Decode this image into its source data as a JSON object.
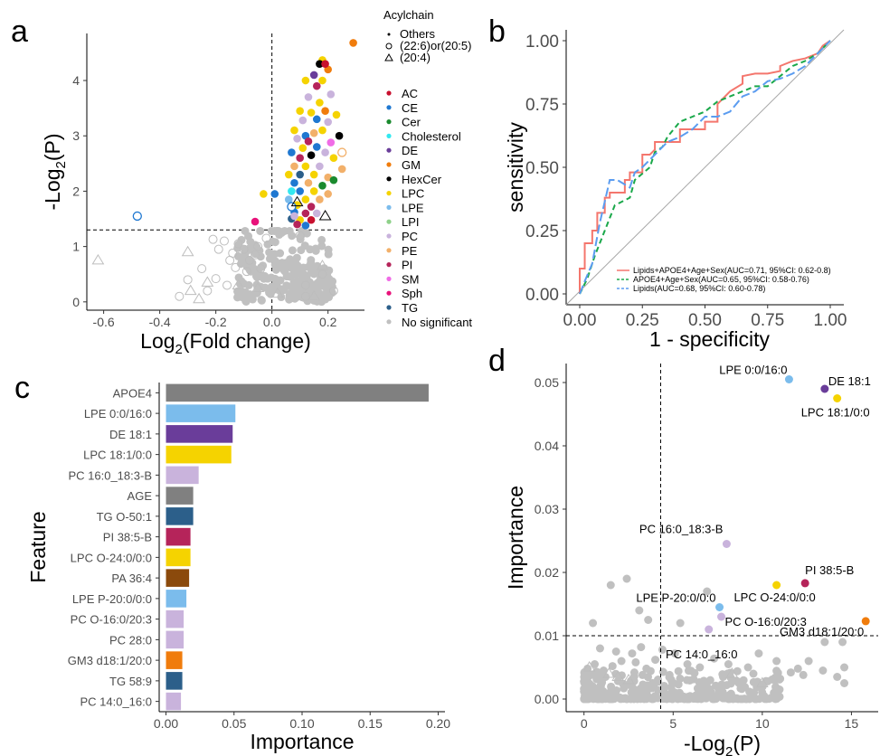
{
  "panel_letters": [
    "a",
    "b",
    "c",
    "d"
  ],
  "colors": {
    "AC": "#c8102e",
    "CE": "#1f78d1",
    "Cer": "#1a8a2e",
    "Cholesterol": "#33e8f0",
    "DE": "#6a3d9a",
    "GM": "#f07c0c",
    "HexCer": "#000000",
    "LPC": "#f5d300",
    "LPE": "#7bbcec",
    "LPI": "#8fd18a",
    "PC": "#c9b3dc",
    "PE": "#f2b06a",
    "PI": "#b5245a",
    "SM": "#f06ce6",
    "Sph": "#e8127a",
    "TG": "#2c5f8a",
    "No significant": "#c0c0c0",
    "gray_bar": "#808080",
    "PA": "#8b4a0c"
  },
  "chart_data": [
    {
      "panel": "a",
      "type": "scatter",
      "xlabel_main": "Log",
      "xlabel_sub": "2",
      "xlabel_rest": "(Fold change)",
      "ylabel_pre": "-Log",
      "ylabel_sub": "2",
      "ylabel_rest": "(P)",
      "xlim": [
        -0.66,
        0.33
      ],
      "ylim": [
        -0.15,
        4.85
      ],
      "xticks": [
        "-0.6",
        "-0.4",
        "-0.2",
        "0.0",
        "0.2"
      ],
      "yticks": [
        "0",
        "1",
        "2",
        "3",
        "4"
      ],
      "hline": 1.3,
      "vline": 0.0,
      "legend_shape_title": "Acylchain",
      "legend_shapes": [
        "Others",
        "(22:6)or(20:5)",
        "(20:4)"
      ],
      "legend_classes": [
        "AC",
        "CE",
        "Cer",
        "Cholesterol",
        "DE",
        "GM",
        "HexCer",
        "LPC",
        "LPE",
        "LPI",
        "PC",
        "PE",
        "PI",
        "SM",
        "Sph",
        "TG",
        "No significant"
      ],
      "points_significant": [
        [
          0.29,
          4.68,
          "GM"
        ],
        [
          0.18,
          4.37,
          "LPC"
        ],
        [
          0.2,
          4.2,
          "GM"
        ],
        [
          0.17,
          4.3,
          "HexCer"
        ],
        [
          0.19,
          4.3,
          "AC"
        ],
        [
          0.15,
          4.1,
          "DE"
        ],
        [
          0.12,
          4.0,
          "LPC"
        ],
        [
          0.18,
          4.0,
          "LPC"
        ],
        [
          0.16,
          3.9,
          "PI"
        ],
        [
          0.21,
          3.75,
          "PC"
        ],
        [
          0.13,
          3.7,
          "PC"
        ],
        [
          0.17,
          3.6,
          "LPC"
        ],
        [
          0.1,
          3.45,
          "LPC"
        ],
        [
          0.14,
          3.42,
          "LPC"
        ],
        [
          0.19,
          3.45,
          "GM"
        ],
        [
          0.23,
          3.38,
          "LPC"
        ],
        [
          0.11,
          3.28,
          "PC"
        ],
        [
          0.16,
          3.3,
          "CE"
        ],
        [
          0.2,
          3.25,
          "PC"
        ],
        [
          0.08,
          3.1,
          "LPC"
        ],
        [
          0.12,
          3.0,
          "CE"
        ],
        [
          0.15,
          3.05,
          "PE"
        ],
        [
          0.18,
          3.1,
          "LPC"
        ],
        [
          0.24,
          3.0,
          "HexCer"
        ],
        [
          0.09,
          2.95,
          "PC"
        ],
        [
          0.13,
          2.9,
          "PI"
        ],
        [
          0.21,
          2.88,
          "SM"
        ],
        [
          0.11,
          2.78,
          "LPC"
        ],
        [
          0.16,
          2.8,
          "CE"
        ],
        [
          0.07,
          2.7,
          "CE"
        ],
        [
          0.19,
          2.7,
          "PC"
        ],
        [
          0.1,
          2.6,
          "PI"
        ],
        [
          0.14,
          2.65,
          "HexCer"
        ],
        [
          0.22,
          2.6,
          "LPC"
        ],
        [
          0.08,
          2.45,
          "PE"
        ],
        [
          0.12,
          2.45,
          "LPC"
        ],
        [
          0.17,
          2.45,
          "PC"
        ],
        [
          0.25,
          2.4,
          "PE"
        ],
        [
          0.06,
          2.3,
          "LPC"
        ],
        [
          0.1,
          2.3,
          "TG"
        ],
        [
          0.15,
          2.3,
          "LPC"
        ],
        [
          0.2,
          2.25,
          "PE"
        ],
        [
          0.08,
          2.15,
          "CE"
        ],
        [
          0.13,
          2.15,
          "PE"
        ],
        [
          0.18,
          2.1,
          "Cer"
        ],
        [
          0.22,
          2.2,
          "Cer"
        ],
        [
          -0.03,
          1.95,
          "LPC"
        ],
        [
          0.01,
          1.95,
          "CE"
        ],
        [
          0.07,
          2.0,
          "Cholesterol"
        ],
        [
          0.1,
          2.0,
          "CE"
        ],
        [
          0.15,
          2.0,
          "LPC"
        ],
        [
          0.2,
          1.95,
          "PE"
        ],
        [
          0.06,
          1.85,
          "LPE"
        ],
        [
          0.12,
          1.85,
          "LPC"
        ],
        [
          0.17,
          1.85,
          "PE"
        ],
        [
          0.09,
          1.75,
          "LPC"
        ],
        [
          0.14,
          1.72,
          "PI"
        ],
        [
          0.08,
          1.62,
          "CE"
        ],
        [
          0.12,
          1.6,
          "PI"
        ],
        [
          0.16,
          1.6,
          "PC"
        ],
        [
          0.07,
          1.5,
          "TG"
        ],
        [
          0.1,
          1.48,
          "LPC"
        ],
        [
          0.14,
          1.48,
          "AC"
        ],
        [
          0.09,
          1.4,
          "PI"
        ],
        [
          0.12,
          1.38,
          "CE"
        ],
        [
          -0.06,
          1.45,
          "Sph"
        ],
        [
          0.08,
          1.55,
          "PC"
        ]
      ],
      "points_open_sig": [
        [
          -0.48,
          1.55,
          "CE"
        ],
        [
          0.25,
          2.7,
          "PE"
        ],
        [
          0.07,
          1.72,
          "CE"
        ]
      ],
      "points_triangle_sig": [
        [
          0.09,
          1.8,
          "LPC"
        ],
        [
          0.19,
          1.55,
          "PE"
        ]
      ],
      "points_gray_open": [
        [
          -0.21,
          1.13
        ],
        [
          -0.19,
          0.95
        ],
        [
          -0.17,
          1.1
        ],
        [
          -0.14,
          0.88
        ],
        [
          -0.12,
          1.05
        ],
        [
          -0.1,
          0.95
        ],
        [
          -0.08,
          0.75
        ],
        [
          -0.06,
          0.85
        ],
        [
          -0.05,
          1.0
        ],
        [
          -0.15,
          0.75
        ],
        [
          -0.25,
          0.6
        ],
        [
          -0.3,
          0.4
        ],
        [
          -0.13,
          0.62
        ],
        [
          -0.09,
          0.55
        ],
        [
          -0.2,
          0.42
        ],
        [
          -0.04,
          0.6
        ],
        [
          0.12,
          0.3
        ],
        [
          0.18,
          0.5
        ],
        [
          0.12,
          0.1
        ],
        [
          -0.33,
          0.1
        ],
        [
          0.22,
          0.2
        ],
        [
          0.1,
          1.2
        ],
        [
          -0.02,
          1.15
        ],
        [
          -0.23,
          0.2
        ],
        [
          -0.16,
          0.3
        ]
      ],
      "points_gray_triangle": [
        [
          -0.62,
          0.75
        ],
        [
          -0.29,
          0.2
        ],
        [
          -0.26,
          0.05
        ],
        [
          -0.3,
          0.9
        ],
        [
          -0.23,
          0.35
        ],
        [
          -0.12,
          0.3
        ],
        [
          0.02,
          0.15
        ],
        [
          0.15,
          0.1
        ],
        [
          0.18,
          0.65
        ],
        [
          -0.05,
          0.25
        ]
      ]
    },
    {
      "panel": "b",
      "type": "line",
      "xlabel": "1 - specificity",
      "ylabel": "sensitivity",
      "xlim": [
        0,
        1
      ],
      "ylim": [
        0,
        1
      ],
      "xticks": [
        "0.00",
        "0.25",
        "0.50",
        "0.75",
        "1.00"
      ],
      "yticks": [
        "0.00",
        "0.25",
        "0.50",
        "0.75",
        "1.00"
      ],
      "series": [
        {
          "name": "Lipids+APOE4+Age+Sex(AUC=0.71, 95%CI: 0.62-0.8)",
          "color": "#f4766d",
          "dash": "",
          "x": [
            0,
            0,
            0.02,
            0.02,
            0.05,
            0.05,
            0.07,
            0.07,
            0.1,
            0.1,
            0.12,
            0.12,
            0.15,
            0.18,
            0.18,
            0.2,
            0.2,
            0.25,
            0.25,
            0.28,
            0.3,
            0.3,
            0.35,
            0.4,
            0.4,
            0.45,
            0.5,
            0.5,
            0.55,
            0.55,
            0.6,
            0.65,
            0.65,
            0.7,
            0.75,
            0.8,
            0.8,
            0.85,
            0.9,
            0.95,
            0.97,
            1.0
          ],
          "y": [
            0,
            0.1,
            0.1,
            0.2,
            0.2,
            0.25,
            0.25,
            0.32,
            0.32,
            0.38,
            0.38,
            0.4,
            0.4,
            0.4,
            0.45,
            0.45,
            0.48,
            0.48,
            0.55,
            0.55,
            0.57,
            0.6,
            0.6,
            0.6,
            0.65,
            0.65,
            0.65,
            0.68,
            0.68,
            0.75,
            0.8,
            0.83,
            0.86,
            0.87,
            0.87,
            0.88,
            0.9,
            0.92,
            0.93,
            0.95,
            0.98,
            1.0
          ]
        },
        {
          "name": "APOE4+Age+Sex(AUC=0.65, 95%CI: 0.58-0.76)",
          "color": "#1aa84a",
          "dash": "6,4",
          "x": [
            0,
            0.03,
            0.06,
            0.1,
            0.14,
            0.2,
            0.22,
            0.28,
            0.3,
            0.33,
            0.35,
            0.4,
            0.45,
            0.5,
            0.55,
            0.6,
            0.65,
            0.7,
            0.75,
            0.8,
            0.85,
            0.9,
            0.95,
            1.0
          ],
          "y": [
            0,
            0.06,
            0.15,
            0.25,
            0.35,
            0.38,
            0.45,
            0.5,
            0.56,
            0.58,
            0.62,
            0.68,
            0.7,
            0.72,
            0.76,
            0.78,
            0.8,
            0.82,
            0.82,
            0.86,
            0.9,
            0.92,
            0.95,
            1.0
          ]
        },
        {
          "name": "Lipids(AUC=0.68, 95%CI: 0.60-0.78)",
          "color": "#5b9cf0",
          "dash": "10,4",
          "x": [
            0,
            0.02,
            0.05,
            0.08,
            0.12,
            0.15,
            0.2,
            0.22,
            0.25,
            0.3,
            0.35,
            0.4,
            0.45,
            0.5,
            0.55,
            0.6,
            0.65,
            0.7,
            0.75,
            0.8,
            0.85,
            0.9,
            0.95,
            1.0
          ],
          "y": [
            0,
            0.05,
            0.12,
            0.28,
            0.45,
            0.45,
            0.42,
            0.48,
            0.5,
            0.55,
            0.6,
            0.62,
            0.65,
            0.7,
            0.7,
            0.72,
            0.78,
            0.8,
            0.84,
            0.85,
            0.87,
            0.9,
            0.95,
            1.0
          ]
        }
      ],
      "diagonal": true
    },
    {
      "panel": "c",
      "type": "bar",
      "xlabel": "Importance",
      "ylabel": "Feature",
      "xlim": [
        -0.005,
        0.205
      ],
      "xticks": [
        "0.00",
        "0.05",
        "0.10",
        "0.15",
        "0.20"
      ],
      "categories": [
        "APOE4",
        "LPE 0:0/16:0",
        "DE 18:1",
        "LPC 18:1/0:0",
        "PC 16:0_18:3-B",
        "AGE",
        "TG O-50:1",
        "PI 38:5-B",
        "LPC O-24:0/0:0",
        "PA 36:4",
        "LPE P-20:0/0:0",
        "PC O-16:0/20:3",
        "PC 28:0",
        "GM3 d18:1/20:0",
        "TG 58:9",
        "PC 14:0_16:0"
      ],
      "values": [
        0.193,
        0.051,
        0.049,
        0.048,
        0.024,
        0.02,
        0.02,
        0.018,
        0.018,
        0.017,
        0.015,
        0.013,
        0.013,
        0.012,
        0.012,
        0.011
      ],
      "bar_colors": [
        "#808080",
        "#7bbcec",
        "#6a3d9a",
        "#f5d300",
        "#c9b3dc",
        "#808080",
        "#2c5f8a",
        "#b5245a",
        "#f5d300",
        "#8b4a0c",
        "#7bbcec",
        "#c9b3dc",
        "#c9b3dc",
        "#f07c0c",
        "#2c5f8a",
        "#c9b3dc"
      ]
    },
    {
      "panel": "d",
      "type": "scatter",
      "xlabel_pre": "-Log",
      "xlabel_sub": "2",
      "xlabel_rest": "(P)",
      "ylabel": "Importance",
      "xlim": [
        -1,
        16.5
      ],
      "ylim": [
        -0.002,
        0.053
      ],
      "xticks": [
        "0",
        "5",
        "10",
        "15"
      ],
      "yticks": [
        "0.00",
        "0.01",
        "0.02",
        "0.03",
        "0.04",
        "0.05"
      ],
      "vline": 4.3,
      "hline": 0.01,
      "labeled_points": [
        {
          "label": "LPE 0:0/16:0",
          "x": 11.5,
          "y": 0.0505,
          "color": "#7bbcec"
        },
        {
          "label": "DE 18:1",
          "x": 13.5,
          "y": 0.049,
          "color": "#6a3d9a"
        },
        {
          "label": "LPC 18:1/0:0",
          "x": 14.2,
          "y": 0.0475,
          "color": "#f5d300"
        },
        {
          "label": "PC 16:0_18:3-B",
          "x": 8.0,
          "y": 0.0245,
          "color": "#c9b3dc"
        },
        {
          "label": "PI 38:5-B",
          "x": 12.4,
          "y": 0.0183,
          "color": "#b5245a"
        },
        {
          "label": "LPC O-24:0/0:0",
          "x": 10.8,
          "y": 0.018,
          "color": "#f5d300"
        },
        {
          "label": "LPE P-20:0/0:0",
          "x": 7.6,
          "y": 0.0145,
          "color": "#7bbcec"
        },
        {
          "label": "GM3 d18:1/20:0",
          "x": 15.8,
          "y": 0.0123,
          "color": "#f07c0c"
        },
        {
          "label": "PC O-16:0/20:3",
          "x": 7.7,
          "y": 0.013,
          "color": "#c9b3dc"
        },
        {
          "label": "PC 14:0_16:0",
          "x": 7.0,
          "y": 0.011,
          "color": "#c9b3dc"
        }
      ],
      "gray_points": [
        [
          1.5,
          0.018
        ],
        [
          2.4,
          0.019
        ],
        [
          0.5,
          0.012
        ],
        [
          3.1,
          0.014
        ],
        [
          3.6,
          0.0125
        ],
        [
          5.4,
          0.012
        ],
        [
          6.9,
          0.017
        ],
        [
          13.5,
          0.009
        ],
        [
          14.5,
          0.009
        ],
        [
          14.6,
          0.005
        ],
        [
          14.6,
          0.0025
        ],
        [
          12.0,
          0.0048
        ],
        [
          13.4,
          0.0045
        ],
        [
          11.6,
          0.0042
        ],
        [
          9.5,
          0.004
        ],
        [
          10.8,
          0.006
        ],
        [
          9.2,
          0.005
        ],
        [
          12.3,
          0.0038
        ],
        [
          11.0,
          0.0032
        ],
        [
          10.3,
          0.0028
        ],
        [
          8.6,
          0.0044
        ],
        [
          6.2,
          0.0041
        ],
        [
          5.8,
          0.0055
        ],
        [
          6.5,
          0.005
        ],
        [
          4.8,
          0.0038
        ],
        [
          4.0,
          0.0062
        ],
        [
          3.5,
          0.0048
        ],
        [
          2.9,
          0.0058
        ],
        [
          2.1,
          0.006
        ],
        [
          1.6,
          0.0052
        ],
        [
          1.1,
          0.0045
        ],
        [
          0.6,
          0.0055
        ],
        [
          0.2,
          0.0048
        ],
        [
          0.9,
          0.008
        ],
        [
          1.8,
          0.0075
        ],
        [
          2.7,
          0.0072
        ],
        [
          3.2,
          0.0082
        ],
        [
          4.4,
          0.0078
        ],
        [
          5.1,
          0.0072
        ],
        [
          7.3,
          0.0064
        ],
        [
          8.1,
          0.0055
        ],
        [
          9.8,
          0.0072
        ],
        [
          12.6,
          0.006
        ],
        [
          14.2,
          0.0035
        ],
        [
          7.8,
          0.0035
        ]
      ],
      "gray_triangles": [
        [
          0.3,
          0.005
        ],
        [
          1.4,
          0.004
        ],
        [
          1.9,
          0.0035
        ],
        [
          2.5,
          0.003
        ],
        [
          8.3,
          0.004
        ],
        [
          10.0,
          0.0025
        ]
      ]
    }
  ]
}
